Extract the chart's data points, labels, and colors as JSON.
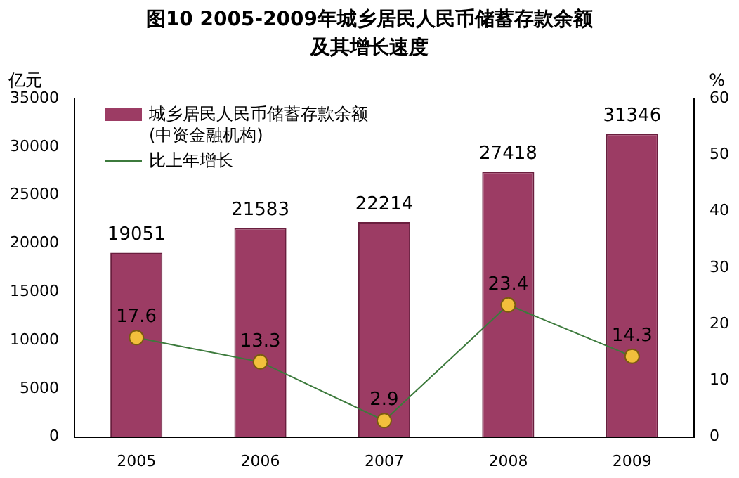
{
  "chart_data": {
    "type": "bar",
    "title": "图10  2005-2009年城乡居民人民币储蓄存款余额及其增长速度",
    "ylabel": "亿元",
    "y2label": "%",
    "categories": [
      "2005",
      "2006",
      "2007",
      "2008",
      "2009"
    ],
    "series": [
      {
        "name": "城乡居民人民币储蓄存款余额(中资金融机构)",
        "color": "#9c3c64",
        "values": [
          19051,
          21583,
          22214,
          27418,
          31346
        ]
      },
      {
        "name": "比上年增长",
        "type": "line",
        "axis": "y2",
        "color": "#3c7a3c",
        "values": [
          17.6,
          13.3,
          2.9,
          23.4,
          14.3
        ]
      }
    ],
    "ylim": [
      0,
      35000
    ],
    "yticks": [
      0,
      5000,
      10000,
      15000,
      20000,
      25000,
      30000,
      35000
    ],
    "y2lim": [
      0,
      60
    ],
    "y2ticks": [
      0,
      10,
      20,
      30,
      40,
      50,
      60
    ],
    "data_labels": true,
    "legend": "top left",
    "grid": false,
    "marker": "circle"
  }
}
